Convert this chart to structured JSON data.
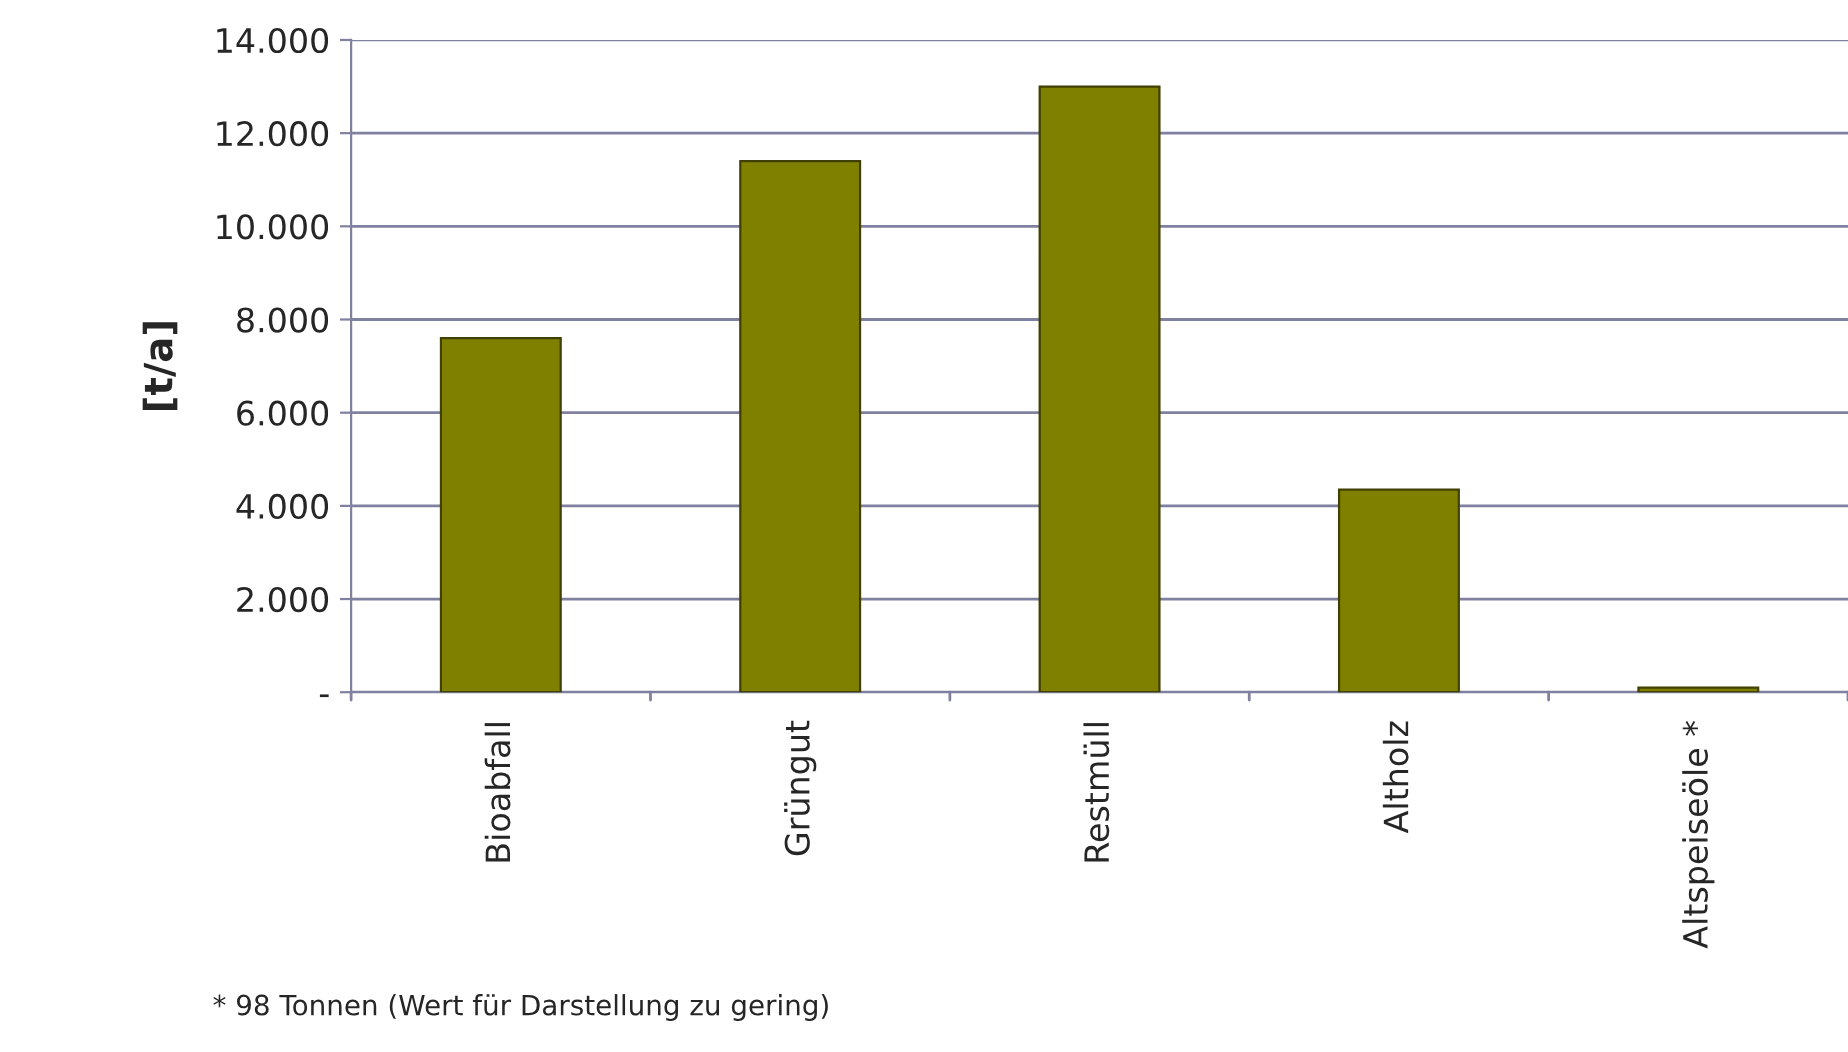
{
  "chart_data": {
    "type": "bar",
    "ylabel": "[t/a]",
    "categories": [
      "Bioabfall",
      "Grüngut",
      "Restmüll",
      "Altholz",
      "Altspeiseöle *"
    ],
    "values": [
      7600,
      11400,
      13000,
      4350,
      98
    ],
    "color": "#808000",
    "ylim": [
      0,
      14000
    ],
    "yticks": [
      {
        "value": 0,
        "label": "-"
      },
      {
        "value": 2000,
        "label": "2.000"
      },
      {
        "value": 4000,
        "label": "4.000"
      },
      {
        "value": 6000,
        "label": "6.000"
      },
      {
        "value": 8000,
        "label": "8.000"
      },
      {
        "value": 10000,
        "label": "10.000"
      },
      {
        "value": 12000,
        "label": "12.000"
      },
      {
        "value": 14000,
        "label": "14.000"
      }
    ],
    "grid": "y",
    "annotations": [
      "* 98 Tonnen (Wert für Darstellung zu gering)"
    ]
  }
}
